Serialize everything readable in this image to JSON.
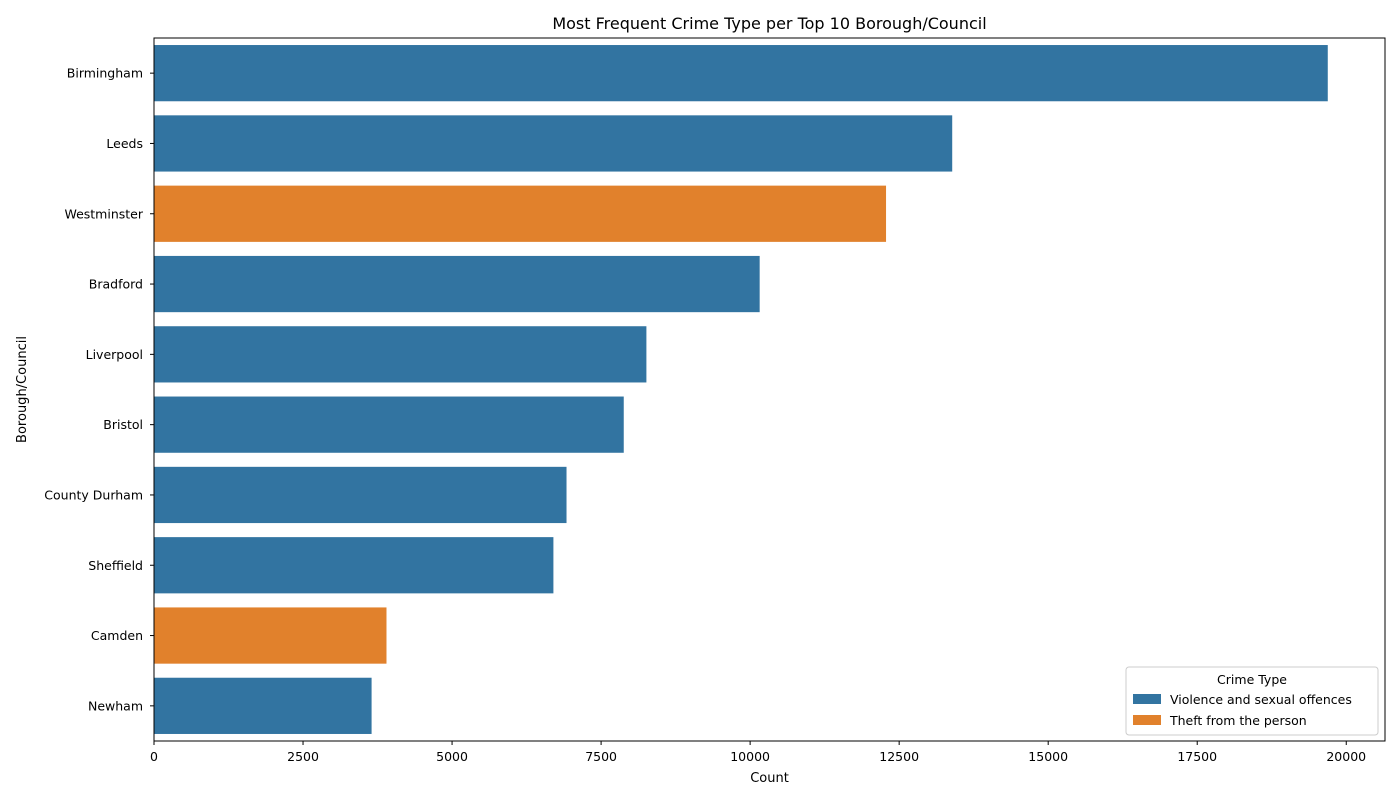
{
  "chart_data": {
    "type": "bar",
    "orientation": "horizontal",
    "title": "Most Frequent Crime Type per Top 10 Borough/Council",
    "xlabel": "Count",
    "ylabel": "Borough/Council",
    "xlim": [
      0,
      20650
    ],
    "xticks": [
      0,
      2500,
      5000,
      7500,
      10000,
      12500,
      15000,
      17500,
      20000
    ],
    "grid": false,
    "legend": {
      "title": "Crime Type",
      "position": "bottom-right",
      "entries": [
        {
          "label": "Violence and sexual offences",
          "color": "#3274a1"
        },
        {
          "label": "Theft from the person",
          "color": "#e1812c"
        }
      ]
    },
    "categories": [
      "Birmingham",
      "Leeds",
      "Westminster",
      "Bradford",
      "Liverpool",
      "Bristol",
      "County Durham",
      "Sheffield",
      "Camden",
      "Newham"
    ],
    "values": [
      19690,
      13390,
      12280,
      10160,
      8260,
      7880,
      6920,
      6700,
      3900,
      3650
    ],
    "crime_types": [
      "Violence and sexual offences",
      "Violence and sexual offences",
      "Theft from the person",
      "Violence and sexual offences",
      "Violence and sexual offences",
      "Violence and sexual offences",
      "Violence and sexual offences",
      "Violence and sexual offences",
      "Theft from the person",
      "Violence and sexual offences"
    ]
  }
}
